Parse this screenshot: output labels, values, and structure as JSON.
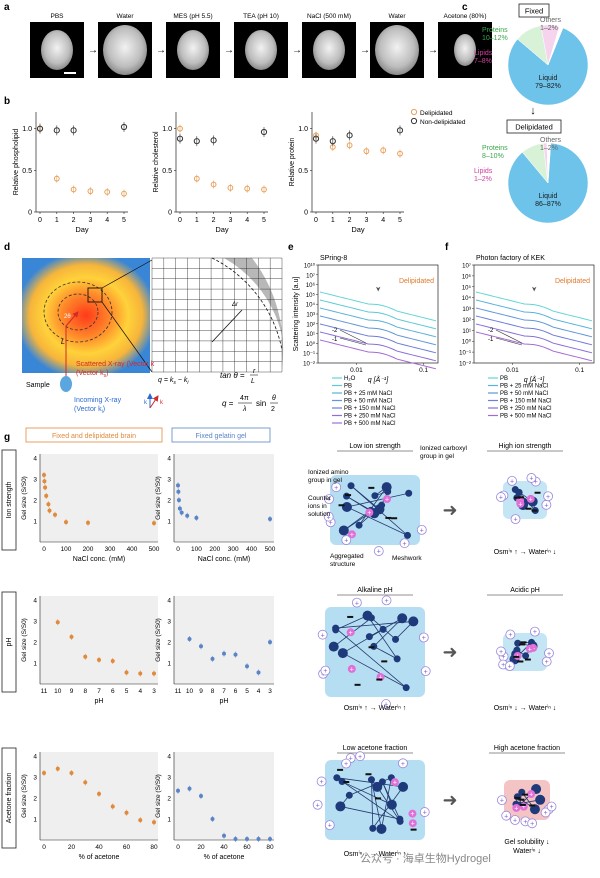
{
  "panels": {
    "a": "a",
    "b": "b",
    "c": "c",
    "d": "d",
    "e": "e",
    "f": "f",
    "g": "g"
  },
  "panel_a": {
    "steps": [
      "PBS",
      "Water",
      "MES (pH 5.5)",
      "TEA (pH 10)",
      "NaCl (500 mM)",
      "Water",
      "Acetone (80%)"
    ],
    "arrow_glyph": "→"
  },
  "panel_b": {
    "xlabel": "Day",
    "legend": [
      "Delipidated",
      "Non-delipidated"
    ],
    "colors": {
      "delipidated": "#e8a05a",
      "non_delipidated": "#333333"
    },
    "subplots": [
      {
        "ylabel": "Relative phospholipid",
        "delip_days": [
          0,
          1,
          2,
          3,
          4,
          5
        ],
        "delip": [
          1.0,
          0.4,
          0.27,
          0.25,
          0.24,
          0.22
        ],
        "non_days": [
          0,
          1,
          2,
          5
        ],
        "non": [
          1.0,
          0.98,
          0.98,
          1.02
        ]
      },
      {
        "ylabel": "Relative cholesterol",
        "delip_days": [
          0,
          1,
          2,
          3,
          4,
          5
        ],
        "delip": [
          1.0,
          0.4,
          0.33,
          0.29,
          0.28,
          0.27
        ],
        "non_days": [
          0,
          1,
          2,
          5
        ],
        "non": [
          0.88,
          0.85,
          0.86,
          0.96
        ]
      },
      {
        "ylabel": "Relative protein",
        "delip_days": [
          0,
          1,
          2,
          3,
          4,
          5
        ],
        "delip": [
          0.92,
          0.78,
          0.8,
          0.73,
          0.74,
          0.7
        ],
        "non_days": [
          0,
          1,
          2,
          5
        ],
        "non": [
          0.88,
          0.85,
          0.92,
          0.98
        ]
      }
    ],
    "yticks": [
      "0",
      "0.5",
      "1.0"
    ],
    "xticks": [
      "0",
      "1",
      "2",
      "3",
      "4",
      "5"
    ]
  },
  "panel_c": {
    "fixed_label": "Fixed",
    "delipidated_label": "Delipidated",
    "fixed": {
      "proteins": "Proteins\n10–12%",
      "lipids": "Lipids\n7–8%",
      "others": "Others\n1–2%",
      "liquid": "Liquid\n79–82%"
    },
    "delip": {
      "proteins": "Proteins\n8–10%",
      "lipids": "Lipids\n1–2%",
      "others": "Others\n1–2%",
      "liquid": "Liquid\n86–87%"
    },
    "colors": {
      "liquid": "#6ec3ea",
      "proteins": "#d8f2d8",
      "lipids": "#f6d4ee",
      "others": "#ffffff"
    },
    "fixed_values": [
      80.5,
      11,
      7.5,
      1.5
    ],
    "delip_values": [
      86.5,
      9,
      1.5,
      1.5
    ]
  },
  "panel_d": {
    "scattered": "Scattered X-ray\n(Vector k",
    "scattered_sub": "s",
    "incoming": "Incoming X-ray\n(Vector k",
    "incoming_sub": "i",
    "sample": "Sample",
    "L": "L",
    "twotheta": "2θ",
    "q_eq": "q = k",
    "tan_eq": "tan θ = r / L",
    "q_eq2": "q = 4π/λ sin θ/2"
  },
  "panel_e": {
    "title": "SPring-8",
    "tag": "Delipidated",
    "ylabel": "Scattering intensity [a.u]",
    "xlabel": "q [Å⁻¹]",
    "yticks": [
      "10⁻²",
      "10⁻¹",
      "10⁰",
      "10¹",
      "10²",
      "10³",
      "10⁴",
      "10⁵",
      "10⁶",
      "10⁷",
      "10¹⁰"
    ],
    "xticks": [
      "0.01",
      "0.1"
    ],
    "legend": [
      "H₂O",
      "PB",
      "PB + 25 mM NaCl",
      "PB + 50 mM NaCl",
      "PB + 150 mM NaCl",
      "PB + 250 mM NaCl",
      "PB + 500 mM NaCl"
    ],
    "colors": [
      "#62d6d6",
      "#5bc9d9",
      "#58b2dc",
      "#5f97dc",
      "#6d7edb",
      "#8a6fd9",
      "#a66ad6"
    ],
    "slopes": [
      "-2",
      "-1"
    ]
  },
  "panel_f": {
    "title": "Photon factory of KEK",
    "tag": "Delipidated",
    "xlabel": "q [Å⁻¹]",
    "yticks": [
      "10⁻²",
      "10⁻¹",
      "10⁰",
      "10¹",
      "10²",
      "10³",
      "10⁴",
      "10⁵",
      "10⁶",
      "10⁷"
    ],
    "xticks": [
      "0.01",
      "0.1"
    ],
    "legend": [
      "PB",
      "PB + 25 mM NaCl",
      "PB + 50 mM NaCl",
      "PB + 150 mM NaCl",
      "PB + 250 mM NaCl",
      "PB + 500 mM NaCl"
    ],
    "colors": [
      "#62d6d6",
      "#58b2dc",
      "#5f97dc",
      "#6d7edb",
      "#8a6fd9",
      "#a66ad6"
    ],
    "slopes": [
      "-2",
      "-1"
    ]
  },
  "panel_g": {
    "col_titles": [
      "Fixed and delipidated brain",
      "Fixed gelatin gel"
    ],
    "row_titles": [
      "Ion strength",
      "pH",
      "Acetone fraction"
    ],
    "ylabel": "Gel size (S/S0)",
    "xlabels": [
      "NaCl conc. (mM)",
      "pH",
      "% of acetone"
    ],
    "brain_color": "#e08a3c",
    "gel_color": "#5b84c8",
    "ion": {
      "xticks": [
        "0",
        "100",
        "200",
        "300",
        "400",
        "500"
      ],
      "yticks": [
        "1",
        "2",
        "3",
        "4"
      ],
      "brain": [
        [
          0,
          3.2
        ],
        [
          2,
          2.9
        ],
        [
          5,
          2.6
        ],
        [
          10,
          2.2
        ],
        [
          20,
          1.8
        ],
        [
          25,
          1.5
        ],
        [
          50,
          1.3
        ],
        [
          100,
          0.95
        ],
        [
          200,
          0.92
        ],
        [
          500,
          0.9
        ]
      ],
      "gel": [
        [
          0,
          2.7
        ],
        [
          2,
          2.4
        ],
        [
          5,
          2.0
        ],
        [
          10,
          1.6
        ],
        [
          20,
          1.4
        ],
        [
          50,
          1.25
        ],
        [
          100,
          1.15
        ],
        [
          500,
          1.1
        ]
      ]
    },
    "ph": {
      "xticks": [
        "11",
        "10",
        "9",
        "8",
        "7",
        "6",
        "5",
        "4",
        "3"
      ],
      "yticks": [
        "1",
        "2",
        "3",
        "4"
      ],
      "brain": [
        [
          10,
          2.95
        ],
        [
          9,
          2.25
        ],
        [
          8,
          1.3
        ],
        [
          7,
          1.15
        ],
        [
          6,
          1.1
        ],
        [
          5,
          0.55
        ],
        [
          4,
          0.5
        ],
        [
          3,
          0.5
        ]
      ],
      "gel": [
        [
          10,
          2.15
        ],
        [
          9,
          1.8
        ],
        [
          8,
          1.2
        ],
        [
          7,
          1.45
        ],
        [
          6,
          1.4
        ],
        [
          5,
          0.85
        ],
        [
          4,
          0.55
        ],
        [
          3,
          2.0
        ]
      ]
    },
    "acetone": {
      "xticks": [
        "0",
        "20",
        "40",
        "60",
        "80"
      ],
      "yticks": [
        "1",
        "2",
        "3",
        "4"
      ],
      "brain": [
        [
          0,
          3.2
        ],
        [
          10,
          3.4
        ],
        [
          20,
          3.2
        ],
        [
          30,
          2.75
        ],
        [
          40,
          2.2
        ],
        [
          50,
          1.6
        ],
        [
          60,
          1.3
        ],
        [
          70,
          0.95
        ],
        [
          80,
          0.85
        ]
      ],
      "gel": [
        [
          0,
          2.35
        ],
        [
          10,
          2.45
        ],
        [
          20,
          2.1
        ],
        [
          30,
          1.0
        ],
        [
          40,
          0.2
        ],
        [
          50,
          0.05
        ],
        [
          60,
          0.05
        ],
        [
          70,
          0.05
        ],
        [
          80,
          0.05
        ]
      ]
    },
    "schematics": [
      {
        "left_title": "Low ion strength",
        "right_title": "High ion strength",
        "labels": [
          "Ionized carboxyl group in gel",
          "Ionized amino group in gel",
          "Counter ions in solution",
          "Aggregated structure",
          "Meshwork"
        ],
        "eq": "Osmⁱⁿ ↑ → Waterⁱⁿ ↓"
      },
      {
        "left_title": "Alkaline pH",
        "right_title": "Acidic pH",
        "left_eq": "Osmⁱⁿ ↑ → Waterⁱⁿ ↑",
        "right_eq": "Osmⁱⁿ ↓ → Waterⁱⁿ ↓"
      },
      {
        "left_title": "Low acetone fraction",
        "right_title": "High acetone fraction",
        "left_eq": "Osmⁱⁿ ↓ → Waterⁱⁿ ↑",
        "right_eq": "Gel solubility ↓\nWaterⁱⁿ ↓"
      }
    ]
  },
  "watermark": "公众号 · 海卓生物Hydrogel",
  "chart_data": [
    {
      "type": "scatter",
      "title": "Relative phospholipid",
      "xlabel": "Day",
      "ylabel": "Relative phospholipid",
      "ylim": [
        0,
        1.2
      ],
      "series": [
        {
          "name": "Delipidated",
          "x": [
            0,
            1,
            2,
            3,
            4,
            5
          ],
          "values": [
            1.0,
            0.4,
            0.27,
            0.25,
            0.24,
            0.22
          ]
        },
        {
          "name": "Non-delipidated",
          "x": [
            0,
            1,
            2,
            5
          ],
          "values": [
            1.0,
            0.98,
            0.98,
            1.02
          ]
        }
      ]
    },
    {
      "type": "scatter",
      "title": "Relative cholesterol",
      "xlabel": "Day",
      "ylabel": "Relative cholesterol",
      "ylim": [
        0,
        1.2
      ],
      "series": [
        {
          "name": "Delipidated",
          "x": [
            0,
            1,
            2,
            3,
            4,
            5
          ],
          "values": [
            1.0,
            0.4,
            0.33,
            0.29,
            0.28,
            0.27
          ]
        },
        {
          "name": "Non-delipidated",
          "x": [
            0,
            1,
            2,
            5
          ],
          "values": [
            0.88,
            0.85,
            0.86,
            0.96
          ]
        }
      ]
    },
    {
      "type": "scatter",
      "title": "Relative protein",
      "xlabel": "Day",
      "ylabel": "Relative protein",
      "ylim": [
        0,
        1.2
      ],
      "series": [
        {
          "name": "Delipidated",
          "x": [
            0,
            1,
            2,
            3,
            4,
            5
          ],
          "values": [
            0.92,
            0.78,
            0.8,
            0.73,
            0.74,
            0.7
          ]
        },
        {
          "name": "Non-delipidated",
          "x": [
            0,
            1,
            2,
            5
          ],
          "values": [
            0.88,
            0.85,
            0.92,
            0.98
          ]
        }
      ]
    },
    {
      "type": "pie",
      "title": "Fixed",
      "categories": [
        "Liquid",
        "Proteins",
        "Lipids",
        "Others"
      ],
      "values": [
        80.5,
        11,
        7.5,
        1.5
      ]
    },
    {
      "type": "pie",
      "title": "Delipidated",
      "categories": [
        "Liquid",
        "Proteins",
        "Lipids",
        "Others"
      ],
      "values": [
        86.5,
        9,
        1.5,
        1.5
      ]
    }
  ]
}
